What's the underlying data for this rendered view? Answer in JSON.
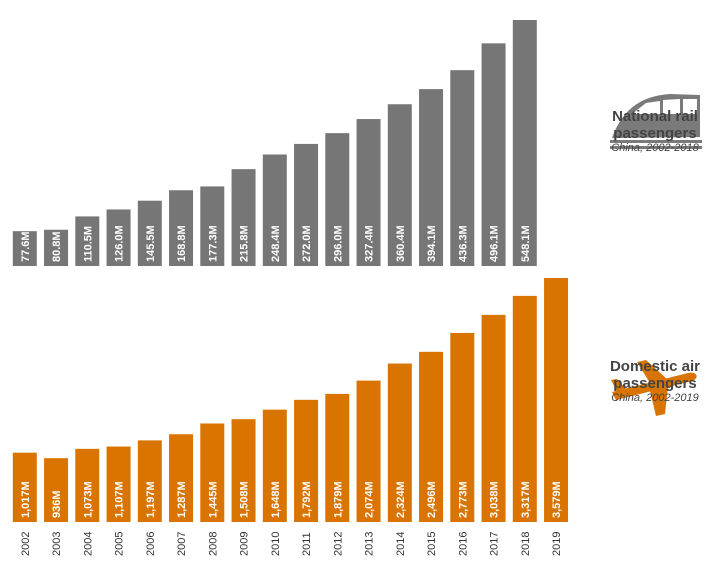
{
  "chart_data": [
    {
      "type": "bar",
      "title": "National rail passengers",
      "subtitle": "China, 2002-2018",
      "color": "#767676",
      "categories": [
        "2002",
        "2003",
        "2004",
        "2005",
        "2006",
        "2007",
        "2008",
        "2009",
        "2010",
        "2011",
        "2012",
        "2013",
        "2014",
        "2015",
        "2016",
        "2017",
        "2018"
      ],
      "values": [
        77.6,
        80.8,
        110.5,
        126.0,
        145.5,
        168.8,
        177.3,
        215.8,
        248.4,
        272.0,
        296.0,
        327.4,
        360.4,
        394.1,
        436.3,
        496.1,
        548.1
      ],
      "labels": [
        "77.6M",
        "80.8M",
        "110.5M",
        "126.0M",
        "145.5M",
        "168.8M",
        "177.3M",
        "215.8M",
        "248.4M",
        "272.0M",
        "296.0M",
        "327.4M",
        "360.4M",
        "394.1M",
        "436.3M",
        "496.1M",
        "548.1M"
      ],
      "unit": "M"
    },
    {
      "type": "bar",
      "title": "Domestic air passengers",
      "subtitle": "China, 2002-2019",
      "color": "#D97400",
      "categories": [
        "2002",
        "2003",
        "2004",
        "2005",
        "2006",
        "2007",
        "2008",
        "2009",
        "2010",
        "2011",
        "2012",
        "2013",
        "2014",
        "2015",
        "2016",
        "2017",
        "2018",
        "2019"
      ],
      "values": [
        1017,
        936,
        1073,
        1107,
        1197,
        1287,
        1445,
        1508,
        1648,
        1792,
        1879,
        2074,
        2324,
        2496,
        2773,
        3038,
        3317,
        3579
      ],
      "labels": [
        "1,017M",
        "936M",
        "1,073M",
        "1,107M",
        "1,197M",
        "1,287M",
        "1,445M",
        "1,508M",
        "1,648M",
        "1,792M",
        "1,879M",
        "2,074M",
        "2,324M",
        "2,496M",
        "2,773M",
        "3,038M",
        "3,317M",
        "3,579M"
      ],
      "unit": "M"
    }
  ],
  "legend": {
    "rail": {
      "title_line1": "National rail",
      "title_line2": "passengers",
      "subtitle": "China, 2002-2018",
      "icon": "train-icon"
    },
    "air": {
      "title_line1": "Domestic air",
      "title_line2": "passengers",
      "subtitle": "China, 2002-2019",
      "icon": "airplane-icon"
    }
  }
}
